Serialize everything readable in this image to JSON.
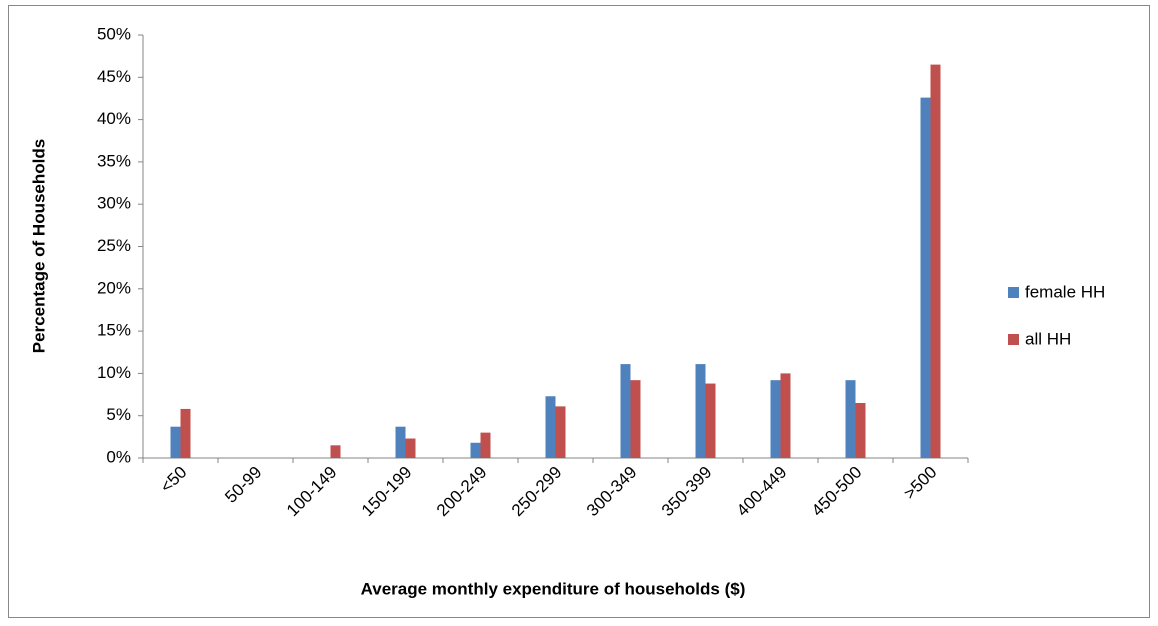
{
  "chart_data": {
    "type": "bar",
    "x_label": "Average monthly expenditure of households ($)",
    "y_label": "Percentage of Households",
    "categories": [
      "<50",
      "50-99",
      "100-149",
      "150-199",
      "200-249",
      "250-299",
      "300-349",
      "350-399",
      "400-449",
      "450-500",
      ">500"
    ],
    "series": [
      {
        "name": "female HH",
        "color": "#4f81bd",
        "values": [
          3.7,
          0,
          0,
          3.7,
          1.8,
          7.3,
          11.1,
          11.1,
          9.2,
          9.2,
          42.6
        ]
      },
      {
        "name": "all HH",
        "color": "#c0504d",
        "values": [
          5.8,
          0,
          1.5,
          2.3,
          3.0,
          6.1,
          9.2,
          8.8,
          10.0,
          6.5,
          46.5
        ]
      }
    ],
    "ylim": [
      0,
      50
    ],
    "yticks": [
      {
        "value": 0,
        "label": "0%"
      },
      {
        "value": 5,
        "label": "5%"
      },
      {
        "value": 10,
        "label": "10%"
      },
      {
        "value": 15,
        "label": "15%"
      },
      {
        "value": 20,
        "label": "20%"
      },
      {
        "value": 25,
        "label": "25%"
      },
      {
        "value": 30,
        "label": "30%"
      },
      {
        "value": 35,
        "label": "35%"
      },
      {
        "value": 40,
        "label": "40%"
      },
      {
        "value": 45,
        "label": "45%"
      },
      {
        "value": 50,
        "label": "50%"
      }
    ],
    "grid": false,
    "legend_position": "right"
  }
}
